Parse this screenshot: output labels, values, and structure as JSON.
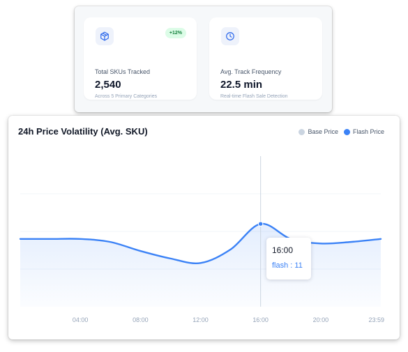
{
  "stats": [
    {
      "icon": "box-icon",
      "badge": "+12%",
      "label": "Total SKUs Tracked",
      "value": "2,540",
      "sub": "Across 5 Primary Categories"
    },
    {
      "icon": "clock-icon",
      "label": "Avg. Track Frequency",
      "value": "22.5 min",
      "sub": "Real-time Flash Sale Detection"
    }
  ],
  "chart": {
    "title": "24h Price Volatility (Avg. SKU)",
    "legend": [
      {
        "label": "Base Price",
        "color": "#cbd5e1"
      },
      {
        "label": "Flash Price",
        "color": "#3b82f6"
      }
    ],
    "tooltip": {
      "title": "16:00",
      "series_label": "flash",
      "separator": " : ",
      "value": "11"
    }
  },
  "chart_data": {
    "type": "line",
    "x_ticks": [
      "04:00",
      "08:00",
      "12:00",
      "16:00",
      "20:00",
      "23:59"
    ],
    "x_hours": [
      0,
      2,
      4,
      6,
      8,
      10,
      12,
      14,
      16,
      18,
      20,
      22,
      24
    ],
    "series": [
      {
        "name": "Flash Price",
        "color": "#3b82f6",
        "values": [
          9,
          9,
          9,
          8.6,
          7.4,
          6.4,
          5.8,
          7.6,
          11,
          9,
          8.4,
          8.6,
          9
        ]
      }
    ],
    "ylim": [
      0,
      20
    ],
    "highlight_x": 16,
    "grid": false
  },
  "colors": {
    "accent": "#3b82f6",
    "badge_bg": "#dcfce7",
    "badge_text": "#15803d"
  }
}
